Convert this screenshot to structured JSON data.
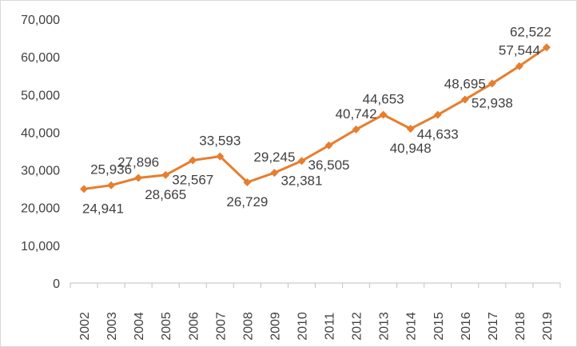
{
  "chart_data": {
    "type": "line",
    "categories": [
      "2002",
      "2003",
      "2004",
      "2005",
      "2006",
      "2007",
      "2008",
      "2009",
      "2010",
      "2011",
      "2012",
      "2013",
      "2014",
      "2015",
      "2016",
      "2017",
      "2018",
      "2019"
    ],
    "values": [
      24941,
      25936,
      27896,
      28665,
      32567,
      33593,
      26729,
      29245,
      32381,
      36505,
      40742,
      44653,
      40948,
      44633,
      48695,
      52938,
      57544,
      62522
    ],
    "data_labels": [
      "24,941",
      "25,936",
      "27,896",
      "28,665",
      "32,567",
      "33,593",
      "26,729",
      "29,245",
      "32,381",
      "36,505",
      "40,742",
      "44,653",
      "40,948",
      "44,633",
      "48,695",
      "52,938",
      "57,544",
      "62,522"
    ],
    "data_label_positions": [
      "below",
      "above",
      "above",
      "below",
      "below",
      "above",
      "below",
      "above",
      "below",
      "below",
      "above",
      "above",
      "below",
      "below",
      "above",
      "below",
      "above",
      "above"
    ],
    "y_tick_labels": [
      "0",
      "10,000",
      "20,000",
      "30,000",
      "40,000",
      "50,000",
      "60,000",
      "70,000"
    ],
    "ylim": [
      0,
      70000
    ],
    "y_tick_step": 10000,
    "grid": false,
    "legend": "none",
    "title": "",
    "xlabel": "",
    "ylabel": "",
    "series_color": "#E67E2E",
    "axis_color": "#bfbfbf",
    "text_color": "#404040",
    "marker": "diamond",
    "x_tick_rotation": "vertical"
  }
}
